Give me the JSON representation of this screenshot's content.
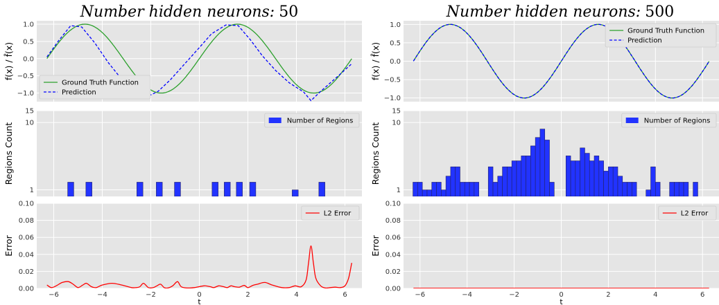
{
  "colors": {
    "panel_bg": "#e5e5e5",
    "grid": "#ffffff",
    "ground_truth": "#2ca02c",
    "prediction": "#0000ff",
    "bars": "#2233ff",
    "bar_edge": "#222266",
    "error": "#ff0000"
  },
  "chart_data": [
    {
      "panel": "left",
      "title_prefix": "Number hidden neurons:",
      "title_value": "50",
      "subplots": [
        {
          "type": "line",
          "ylabel": "f(x) / f̂(x)",
          "ylim": [
            -1.25,
            1.1
          ],
          "yticks": [
            -1.0,
            -0.5,
            0.0,
            0.5,
            1.0
          ],
          "ytick_labels": [
            "−1.0",
            "−0.5",
            "0.0",
            "0.5",
            "1.0"
          ],
          "legend_position": "lower-left",
          "series": [
            {
              "name": "Ground Truth Function",
              "function": "sin",
              "style": "solid",
              "color": "ground_truth"
            },
            {
              "name": "Prediction",
              "style": "dashed",
              "color": "prediction",
              "x": [
                -6.28,
                -5.8,
                -5.3,
                -4.85,
                -4.3,
                -3.75,
                -3.2,
                -2.6,
                -2.05,
                -1.7,
                -1.2,
                -0.6,
                0.0,
                0.5,
                1.1,
                1.6,
                2.1,
                2.6,
                3.15,
                3.7,
                4.3,
                4.6,
                5.0,
                5.6,
                6.28
              ],
              "y": [
                0.05,
                0.52,
                0.96,
                0.92,
                0.45,
                -0.12,
                -0.6,
                -0.96,
                -1.07,
                -0.95,
                -0.62,
                -0.15,
                0.32,
                0.72,
                0.98,
                0.96,
                0.55,
                0.08,
                -0.35,
                -0.7,
                -0.97,
                -1.22,
                -0.95,
                -0.58,
                -0.15
              ]
            }
          ]
        },
        {
          "type": "bar",
          "ylabel": "Regions Count",
          "yscale": "log",
          "ylim": [
            0.8,
            15
          ],
          "yticks": [
            1,
            10,
            15
          ],
          "ytick_labels": [
            "1",
            "10",
            "15"
          ],
          "legend_position": "top-right",
          "series": [
            {
              "name": "Number of Regions",
              "color": "bars"
            }
          ],
          "bar_width": 0.25,
          "bars": [
            {
              "x": -5.3,
              "count": 1.3
            },
            {
              "x": -4.55,
              "count": 1.3
            },
            {
              "x": -2.45,
              "count": 1.3
            },
            {
              "x": -1.65,
              "count": 1.3
            },
            {
              "x": -0.9,
              "count": 1.3
            },
            {
              "x": 0.65,
              "count": 1.3
            },
            {
              "x": 1.15,
              "count": 1.3
            },
            {
              "x": 1.65,
              "count": 1.3
            },
            {
              "x": 2.2,
              "count": 1.3
            },
            {
              "x": 3.95,
              "count": 1.0
            },
            {
              "x": 5.05,
              "count": 1.3
            }
          ]
        },
        {
          "type": "line",
          "ylabel": "Error",
          "xlabel": "t",
          "ylim": [
            0.0,
            0.1
          ],
          "yticks": [
            0.0,
            0.02,
            0.04,
            0.06,
            0.08,
            0.1
          ],
          "ytick_labels": [
            "0.00",
            "0.02",
            "0.04",
            "0.06",
            "0.08",
            "0.10"
          ],
          "xlim": [
            -6.7,
            6.7
          ],
          "xticks": [
            -6,
            -4,
            -2,
            0,
            2,
            4,
            6
          ],
          "xtick_labels": [
            "−6",
            "−4",
            "−2",
            "0",
            "2",
            "4",
            "6"
          ],
          "legend_position": "top-right",
          "series": [
            {
              "name": "L2 Error",
              "color": "error",
              "x": [
                -6.28,
                -6.1,
                -5.9,
                -5.65,
                -5.4,
                -5.2,
                -5.0,
                -4.8,
                -4.65,
                -4.45,
                -4.25,
                -4.0,
                -3.6,
                -3.2,
                -2.8,
                -2.6,
                -2.45,
                -2.3,
                -2.1,
                -1.9,
                -1.75,
                -1.6,
                -1.45,
                -1.3,
                -1.1,
                -0.9,
                -0.75,
                -0.5,
                -0.2,
                0.2,
                0.45,
                0.6,
                0.8,
                1.0,
                1.15,
                1.3,
                1.45,
                1.65,
                1.85,
                2.0,
                2.2,
                2.4,
                2.7,
                3.0,
                3.4,
                3.7,
                3.95,
                4.2,
                4.4,
                4.5,
                4.6,
                4.7,
                4.8,
                5.0,
                5.2,
                5.4,
                5.6,
                5.8,
                6.0,
                6.15,
                6.28
              ],
              "y": [
                0.004,
                0.001,
                0.003,
                0.007,
                0.008,
                0.005,
                0.001,
                0.004,
                0.006,
                0.002,
                0.001,
                0.004,
                0.006,
                0.004,
                0.001,
                0.001,
                0.002,
                0.006,
                0.001,
                0.001,
                0.003,
                0.005,
                0.001,
                0.0005,
                0.003,
                0.008,
                0.002,
                0.0005,
                0.001,
                0.003,
                0.002,
                0.001,
                0.003,
                0.002,
                0.001,
                0.003,
                0.002,
                0.0015,
                0.0035,
                0.001,
                0.0035,
                0.005,
                0.007,
                0.004,
                0.001,
                0.001,
                0.003,
                0.002,
                0.01,
                0.03,
                0.05,
                0.03,
                0.012,
                0.003,
                0.0005,
                0.001,
                0.0015,
                0.001,
                0.003,
                0.012,
                0.03
              ]
            }
          ]
        }
      ]
    },
    {
      "panel": "right",
      "title_prefix": "Number hidden neurons:",
      "title_value": "500",
      "subplots": [
        {
          "type": "line",
          "ylabel": "f(x) / f̂(x)",
          "ylim": [
            -1.1,
            1.1
          ],
          "yticks": [
            -1.0,
            -0.5,
            0.0,
            0.5,
            1.0
          ],
          "ytick_labels": [
            "−1.0",
            "−0.5",
            "0.0",
            "0.5",
            "1.0"
          ],
          "legend_position": "top-right",
          "series": [
            {
              "name": "Ground Truth Function",
              "function": "sin",
              "style": "solid",
              "color": "ground_truth"
            },
            {
              "name": "Prediction",
              "function": "sin",
              "style": "dashed",
              "color": "prediction"
            }
          ]
        },
        {
          "type": "bar",
          "ylabel": "Regions Count",
          "yscale": "log",
          "ylim": [
            0.8,
            15
          ],
          "yticks": [
            1,
            10,
            15
          ],
          "ytick_labels": [
            "1",
            "10",
            "15"
          ],
          "legend_position": "top-right",
          "series": [
            {
              "name": "Number of Regions",
              "color": "bars"
            }
          ],
          "bar_width": 0.2,
          "bars": [
            {
              "x": -6.2,
              "count": 1.3
            },
            {
              "x": -6.0,
              "count": 1.3
            },
            {
              "x": -5.8,
              "count": 1.0
            },
            {
              "x": -5.6,
              "count": 1.0
            },
            {
              "x": -5.4,
              "count": 1.3
            },
            {
              "x": -5.2,
              "count": 1.3
            },
            {
              "x": -5.0,
              "count": 1.0
            },
            {
              "x": -4.8,
              "count": 1.6
            },
            {
              "x": -4.6,
              "count": 2.2
            },
            {
              "x": -4.4,
              "count": 2.2
            },
            {
              "x": -4.2,
              "count": 1.3
            },
            {
              "x": -4.0,
              "count": 1.3
            },
            {
              "x": -3.8,
              "count": 1.3
            },
            {
              "x": -3.6,
              "count": 1.3
            },
            {
              "x": -3.0,
              "count": 2.2
            },
            {
              "x": -2.8,
              "count": 1.3
            },
            {
              "x": -2.6,
              "count": 1.6
            },
            {
              "x": -2.4,
              "count": 2.2
            },
            {
              "x": -2.2,
              "count": 2.2
            },
            {
              "x": -2.0,
              "count": 2.7
            },
            {
              "x": -1.8,
              "count": 2.7
            },
            {
              "x": -1.6,
              "count": 3.2
            },
            {
              "x": -1.4,
              "count": 3.2
            },
            {
              "x": -1.2,
              "count": 4.5
            },
            {
              "x": -1.0,
              "count": 6.0
            },
            {
              "x": -0.8,
              "count": 8.0
            },
            {
              "x": -0.6,
              "count": 5.5
            },
            {
              "x": -0.4,
              "count": 1.3
            },
            {
              "x": 0.3,
              "count": 3.2
            },
            {
              "x": 0.5,
              "count": 2.7
            },
            {
              "x": 0.7,
              "count": 2.7
            },
            {
              "x": 0.9,
              "count": 4.2
            },
            {
              "x": 1.1,
              "count": 3.5
            },
            {
              "x": 1.3,
              "count": 2.7
            },
            {
              "x": 1.5,
              "count": 3.2
            },
            {
              "x": 1.7,
              "count": 2.7
            },
            {
              "x": 1.9,
              "count": 1.9
            },
            {
              "x": 2.1,
              "count": 2.2
            },
            {
              "x": 2.3,
              "count": 2.2
            },
            {
              "x": 2.5,
              "count": 1.6
            },
            {
              "x": 2.7,
              "count": 1.3
            },
            {
              "x": 2.9,
              "count": 1.3
            },
            {
              "x": 3.1,
              "count": 1.3
            },
            {
              "x": 3.7,
              "count": 1.0
            },
            {
              "x": 3.9,
              "count": 2.2
            },
            {
              "x": 4.1,
              "count": 1.3
            },
            {
              "x": 4.7,
              "count": 1.3
            },
            {
              "x": 4.9,
              "count": 1.3
            },
            {
              "x": 5.1,
              "count": 1.3
            },
            {
              "x": 5.3,
              "count": 1.3
            },
            {
              "x": 5.7,
              "count": 1.3
            }
          ]
        },
        {
          "type": "line",
          "ylabel": "Error",
          "xlabel": "t",
          "ylim": [
            0.0,
            0.1
          ],
          "yticks": [
            0.0,
            0.02,
            0.04,
            0.06,
            0.08,
            0.1
          ],
          "ytick_labels": [
            "0.00",
            "0.02",
            "0.04",
            "0.06",
            "0.08",
            "0.10"
          ],
          "xlim": [
            -6.7,
            6.7
          ],
          "xticks": [
            -6,
            -4,
            -2,
            0,
            2,
            4,
            6
          ],
          "xtick_labels": [
            "−6",
            "−4",
            "−2",
            "0",
            "2",
            "4",
            "6"
          ],
          "legend_position": "top-right",
          "series": [
            {
              "name": "L2 Error",
              "color": "error",
              "x": [
                -6.28,
                6.28
              ],
              "y": [
                0.0002,
                0.0002
              ]
            }
          ]
        }
      ]
    }
  ]
}
